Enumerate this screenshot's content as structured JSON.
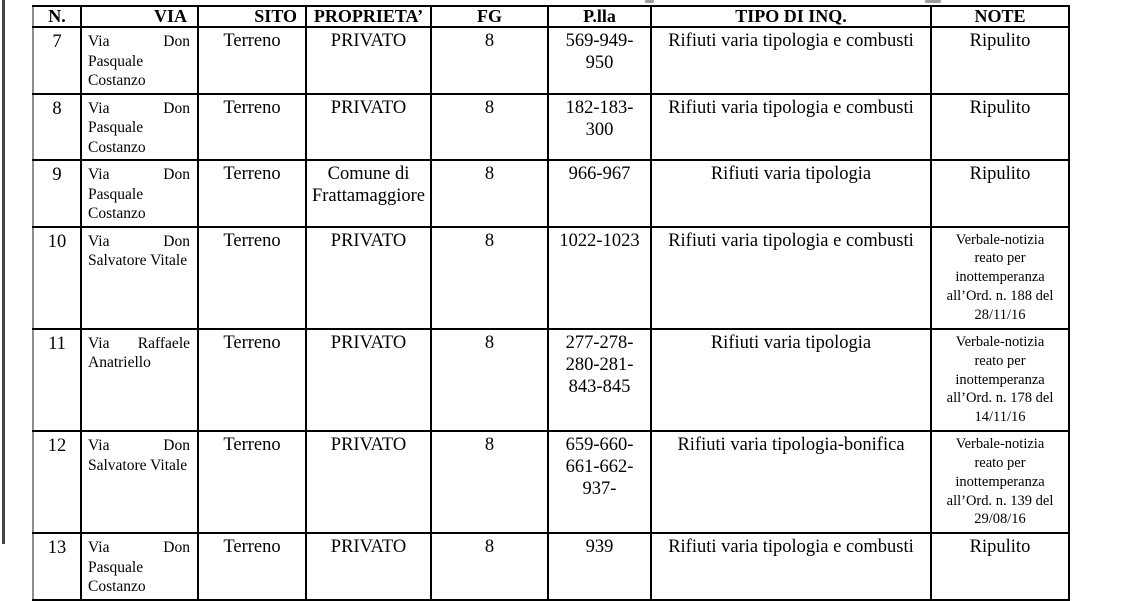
{
  "page": {
    "background": "#ffffff",
    "text_color": "#000000",
    "grid_color": "#000000"
  },
  "table": {
    "columns": [
      {
        "key": "n",
        "label": "N."
      },
      {
        "key": "via",
        "label": "VIA"
      },
      {
        "key": "sito",
        "label": "SITO"
      },
      {
        "key": "proprieta",
        "label": "PROPRIETA’"
      },
      {
        "key": "fg",
        "label": "FG"
      },
      {
        "key": "plla",
        "label": "P.lla"
      },
      {
        "key": "tipo",
        "label": "TIPO DI INQ."
      },
      {
        "key": "note",
        "label": "NOTE"
      }
    ],
    "rows": [
      {
        "n": "7",
        "via": "Via Don Pasquale Costanzo",
        "sito": "Terreno",
        "proprieta": "PRIVATO",
        "fg": "8",
        "plla": "569-949-950",
        "tipo": "Rifiuti varia tipologia e combusti",
        "note": "Ripulito",
        "note_small": false
      },
      {
        "n": "8",
        "via": "Via Don Pasquale Costanzo",
        "sito": "Terreno",
        "proprieta": "PRIVATO",
        "fg": "8",
        "plla": "182-183-300",
        "tipo": "Rifiuti varia tipologia e combusti",
        "note": "Ripulito",
        "note_small": false
      },
      {
        "n": "9",
        "via": "Via Don Pasquale Costanzo",
        "sito": "Terreno",
        "proprieta": "Comune di Frattamaggiore",
        "fg": "8",
        "plla": "966-967",
        "tipo": "Rifiuti varia tipologia",
        "note": "Ripulito",
        "note_small": false
      },
      {
        "n": "10",
        "via": "Via Don Salvatore Vitale",
        "sito": "Terreno",
        "proprieta": "PRIVATO",
        "fg": "8",
        "plla": "1022-1023",
        "tipo": "Rifiuti varia tipologia e combusti",
        "note": "Verbale-notizia reato per inottemperanza all’Ord. n. 188 del 28/11/16",
        "note_small": true
      },
      {
        "n": "11",
        "via": "Via Raffaele Anatriello",
        "sito": "Terreno",
        "proprieta": "PRIVATO",
        "fg": "8",
        "plla": "277-278-280-281-843-845",
        "tipo": "Rifiuti varia tipologia",
        "note": "Verbale-notizia reato per inottemperanza all’Ord. n. 178 del 14/11/16",
        "note_small": true
      },
      {
        "n": "12",
        "via": "Via Don Salvatore Vitale",
        "sito": "Terreno",
        "proprieta": "PRIVATO",
        "fg": "8",
        "plla": "659-660-661-662-937-",
        "tipo": "Rifiuti varia tipologia-bonifica",
        "note": "Verbale-notizia reato per inottemperanza all’Ord. n. 139 del 29/08/16",
        "note_small": true
      },
      {
        "n": "13",
        "via": "Via Don Pasquale Costanzo",
        "sito": "Terreno",
        "proprieta": "PRIVATO",
        "fg": "8",
        "plla": "939",
        "tipo": "Rifiuti varia tipologia e combusti",
        "note": "Ripulito",
        "note_small": false
      }
    ]
  }
}
